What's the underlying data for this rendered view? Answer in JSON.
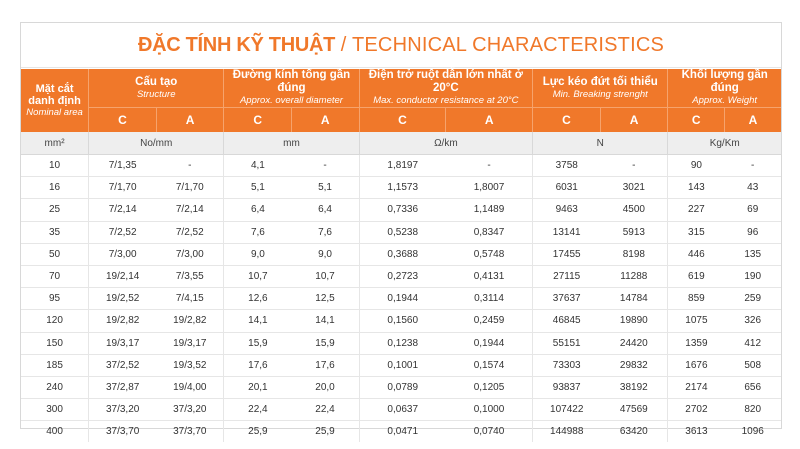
{
  "title": {
    "vi": "ĐẶC TÍNH KỸ THUẬT",
    "sep": " / ",
    "en": "TECHNICAL CHARACTERISTICS"
  },
  "headers": {
    "area": {
      "vi": "Mặt cắt danh định",
      "en": "Nominal area"
    },
    "structure": {
      "vi": "Cấu tạo",
      "en": "Structure"
    },
    "diameter": {
      "vi": "Đường kính tổng gần đúng",
      "en": "Approx. overall diameter"
    },
    "resistance": {
      "vi": "Điện trở ruột dẫn lớn nhất ở 20°C",
      "en": "Max. conductor resistance at 20°C"
    },
    "breaking": {
      "vi": "Lực kéo đứt tối thiểu",
      "en": "Min. Breaking strenght"
    },
    "weight": {
      "vi": "Khối lượng gần đúng",
      "en": "Approx. Weight"
    }
  },
  "sub_c": "C",
  "sub_a": "A",
  "units": {
    "area": "mm²",
    "structure": "No/mm",
    "diameter": "mm",
    "resistance": "Ω/km",
    "breaking": "N",
    "weight": "Kg/Km"
  },
  "rows": [
    [
      "10",
      "7/1,35",
      "-",
      "4,1",
      "-",
      "1,8197",
      "-",
      "3758",
      "-",
      "90",
      "-"
    ],
    [
      "16",
      "7/1,70",
      "7/1,70",
      "5,1",
      "5,1",
      "1,1573",
      "1,8007",
      "6031",
      "3021",
      "143",
      "43"
    ],
    [
      "25",
      "7/2,14",
      "7/2,14",
      "6,4",
      "6,4",
      "0,7336",
      "1,1489",
      "9463",
      "4500",
      "227",
      "69"
    ],
    [
      "35",
      "7/2,52",
      "7/2,52",
      "7,6",
      "7,6",
      "0,5238",
      "0,8347",
      "13141",
      "5913",
      "315",
      "96"
    ],
    [
      "50",
      "7/3,00",
      "7/3,00",
      "9,0",
      "9,0",
      "0,3688",
      "0,5748",
      "17455",
      "8198",
      "446",
      "135"
    ],
    [
      "70",
      "19/2,14",
      "7/3,55",
      "10,7",
      "10,7",
      "0,2723",
      "0,4131",
      "27115",
      "11288",
      "619",
      "190"
    ],
    [
      "95",
      "19/2,52",
      "7/4,15",
      "12,6",
      "12,5",
      "0,1944",
      "0,3114",
      "37637",
      "14784",
      "859",
      "259"
    ],
    [
      "120",
      "19/2,82",
      "19/2,82",
      "14,1",
      "14,1",
      "0,1560",
      "0,2459",
      "46845",
      "19890",
      "1075",
      "326"
    ],
    [
      "150",
      "19/3,17",
      "19/3,17",
      "15,9",
      "15,9",
      "0,1238",
      "0,1944",
      "55151",
      "24420",
      "1359",
      "412"
    ],
    [
      "185",
      "37/2,52",
      "19/3,52",
      "17,6",
      "17,6",
      "0,1001",
      "0,1574",
      "73303",
      "29832",
      "1676",
      "508"
    ],
    [
      "240",
      "37/2,87",
      "19/4,00",
      "20,1",
      "20,0",
      "0,0789",
      "0,1205",
      "93837",
      "38192",
      "2174",
      "656"
    ],
    [
      "300",
      "37/3,20",
      "37/3,20",
      "22,4",
      "22,4",
      "0,0637",
      "0,1000",
      "107422",
      "47569",
      "2702",
      "820"
    ],
    [
      "400",
      "37/3,70",
      "37/3,70",
      "25,9",
      "25,9",
      "0,0471",
      "0,0740",
      "144988",
      "63420",
      "3613",
      "1096"
    ]
  ],
  "colors": {
    "accent": "#f0782a",
    "unit_row_bg": "#eeeeee"
  }
}
